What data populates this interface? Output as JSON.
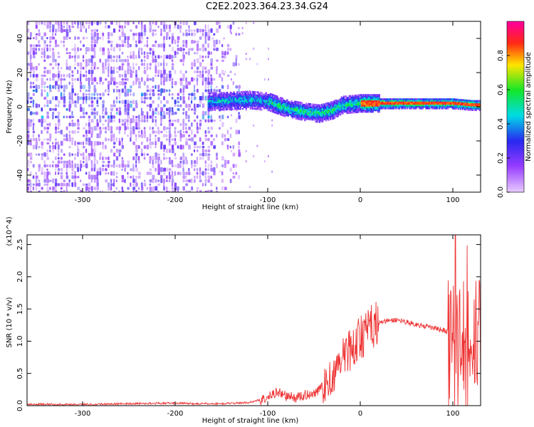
{
  "title": "C2E2.2023.364.23.34.G24",
  "chart_data": [
    {
      "type": "heatmap",
      "xlabel": "Height of straight line (km)",
      "ylabel": "Frequency (Hz)",
      "xlim": [
        -360,
        130
      ],
      "ylim": [
        -50,
        50
      ],
      "xticks": [
        -300,
        -200,
        -100,
        0,
        100
      ],
      "yticks": [
        -40,
        -20,
        0,
        20,
        40
      ],
      "colorbar": {
        "label": "Normalized spectral amplitude",
        "range": [
          0.0,
          1.0
        ],
        "ticks": [
          "0.0",
          "0.2",
          "0.4",
          "0.6",
          "0.8"
        ]
      },
      "ridge": {
        "x": [
          -160,
          -120,
          -100,
          -80,
          -60,
          -45,
          -30,
          -20,
          0,
          50,
          100,
          120,
          130
        ],
        "y": [
          3,
          4,
          3,
          -1,
          -3,
          -4,
          -2,
          1,
          2,
          2,
          2,
          1,
          1
        ]
      },
      "grid": false
    },
    {
      "type": "line",
      "xlabel": "Height of straight line (km)",
      "ylabel": "SNR (10 * v/v)",
      "multiplier": "(x10^4)",
      "xlim": [
        -360,
        130
      ],
      "ylim": [
        0,
        2.65
      ],
      "xticks": [
        -300,
        -200,
        -100,
        0,
        100
      ],
      "yticks": [
        "0.0",
        "0.5",
        "1.0",
        "1.5",
        "2.0",
        "2.5"
      ],
      "series": [
        {
          "color": "#ee3333",
          "x": [
            -360,
            -300,
            -250,
            -200,
            -180,
            -150,
            -120,
            -100,
            -90,
            -80,
            -70,
            -50,
            -40,
            -30,
            -20,
            -10,
            0,
            10,
            20,
            30,
            40,
            50,
            60,
            70,
            80,
            90,
            95,
            100,
            105,
            110,
            115,
            120,
            125,
            130
          ],
          "y": [
            0.02,
            0.02,
            0.03,
            0.04,
            0.03,
            0.03,
            0.05,
            0.12,
            0.22,
            0.15,
            0.12,
            0.2,
            0.3,
            0.45,
            0.7,
            0.9,
            1.05,
            1.2,
            1.28,
            1.32,
            1.33,
            1.3,
            1.26,
            1.23,
            1.2,
            1.17,
            1.15,
            1.1,
            0.9,
            1.3,
            0.6,
            1.2,
            1.1,
            1.1
          ]
        }
      ],
      "grid": false
    }
  ]
}
